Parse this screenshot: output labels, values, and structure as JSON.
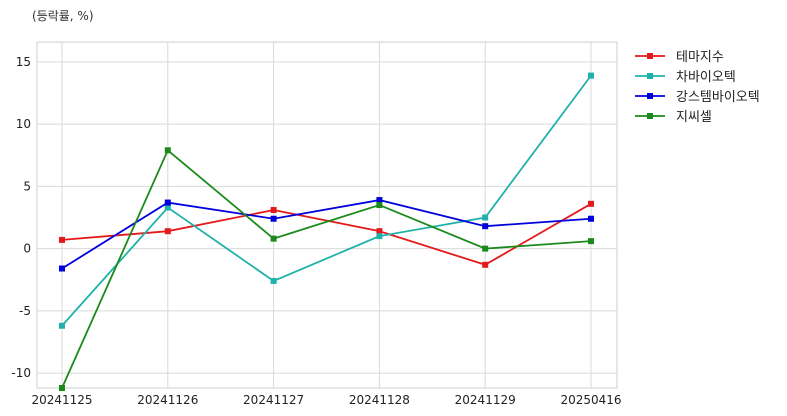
{
  "chart_data": {
    "type": "line",
    "unit_label": "(등락률, %)",
    "categories": [
      "20241125",
      "20241126",
      "20241127",
      "20241128",
      "20241129",
      "20250416"
    ],
    "y_ticks": [
      15,
      10,
      5,
      0,
      -5,
      -10
    ],
    "ylim": [
      -11.2,
      16.6
    ],
    "grid": true,
    "legend_position": "right-top",
    "series": [
      {
        "name": "테마지수",
        "color": "#e31a1c",
        "values": [
          0.7,
          1.4,
          3.1,
          1.4,
          -1.3,
          3.6
        ]
      },
      {
        "name": "차바이오텍",
        "color": "#20b2aa",
        "values": [
          -6.2,
          3.3,
          -2.6,
          1.0,
          2.5,
          13.9
        ]
      },
      {
        "name": "강스템바이오텍",
        "color": "#0000dd",
        "values": [
          -1.6,
          3.7,
          2.4,
          3.9,
          1.8,
          2.4
        ]
      },
      {
        "name": "지씨셀",
        "color": "#1a8a1a",
        "values": [
          -11.2,
          7.9,
          0.8,
          3.5,
          0.0,
          0.6
        ]
      }
    ]
  }
}
